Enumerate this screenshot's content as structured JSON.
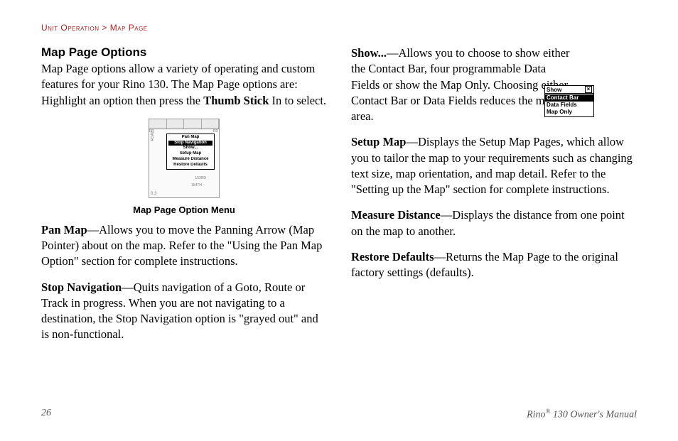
{
  "breadcrumb": {
    "section": "Unit Operation",
    "sep": ">",
    "page": "Map Page"
  },
  "heading": "Map Page Options",
  "intro": {
    "pre": "Map Page options allow a variety of operating and custom features for your Rino 130. The Map Page options are: Highlight an option then press the ",
    "bold": "Thumb Stick",
    "post": " In to select."
  },
  "figure": {
    "caption": "Map Page Option Menu",
    "menu_items": [
      "Pan Map",
      "Stop Navigation",
      "Show...",
      "Setup Map",
      "Measure Distance",
      "Restore Defaults"
    ],
    "highlighted_index": 1,
    "map_labels": {
      "road_left": "ROAD",
      "rd_right": "RD",
      "scale": "0.3",
      "label1": "153RD",
      "label2": "154TH",
      "fr": "FR"
    }
  },
  "left_items": [
    {
      "term": "Pan Map",
      "desc": "—Allows you to move the Panning Arrow (Map Pointer) about on the map. Refer to the \"Using the Pan Map Option\" section for complete instructions."
    },
    {
      "term": "Stop Navigation",
      "desc": "—Quits navigation of a Goto, Route or Track in progress. When you are not navigating to a destination, the Stop Navigation option is \"grayed out\" and is non-functional."
    }
  ],
  "right_items": [
    {
      "term": "Show...",
      "desc": "—Allows you to choose to show either the Contact Bar, four programmable Data Fields or show the Map Only. Choosing either Contact Bar or Data Fields reduces the map area."
    },
    {
      "term": "Setup Map",
      "desc": "—Displays the Setup Map Pages, which allow you to tailor the map to your requirements such as changing text size, map orientation, and map detail. Refer to the \"Setting up the Map\" section for complete instructions."
    },
    {
      "term": "Measure Distance",
      "desc": "—Displays the distance from one point on the map to another."
    },
    {
      "term": "Restore Defaults",
      "desc": "—Returns the Map Page to the original factory settings (defaults)."
    }
  ],
  "show_popup": {
    "title": "Show",
    "items": [
      "Contact Bar",
      "Data Fields",
      "Map Only"
    ],
    "highlighted_index": 0
  },
  "footer": {
    "page_number": "26",
    "manual_pre": "Rino",
    "manual_sup": "®",
    "manual_post": " 130 Owner's Manual"
  }
}
